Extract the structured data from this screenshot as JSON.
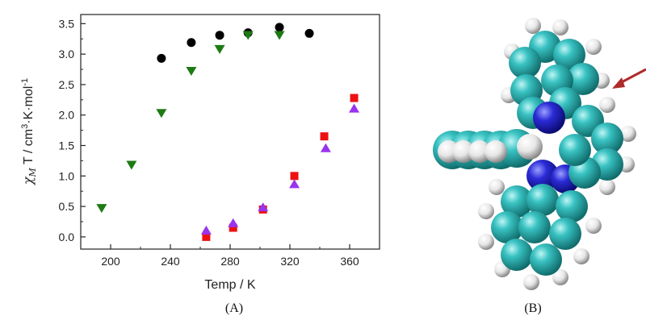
{
  "chart_data": {
    "type": "scatter",
    "xlabel": "Temp / K",
    "ylabel": {
      "symbol": "χ",
      "subscript": "M",
      "rest": " T / cm",
      "sup1": "3",
      "mid": "·K·mol",
      "sup2": "-1"
    },
    "xlim": [
      180,
      380
    ],
    "ylim": [
      -0.2,
      3.65
    ],
    "xticks": [
      200,
      240,
      280,
      320,
      360
    ],
    "yticks": [
      0.0,
      0.5,
      1.0,
      1.5,
      2.0,
      2.5,
      3.0,
      3.5
    ],
    "xtick_labels": [
      "200",
      "240",
      "280",
      "320",
      "360"
    ],
    "ytick_labels": [
      "0.0",
      "0.5",
      "1.0",
      "1.5",
      "2.0",
      "2.5",
      "3.0",
      "3.5"
    ],
    "grid": false,
    "legend": "none",
    "series": [
      {
        "marker": "circle",
        "color": "#000000",
        "points": [
          [
            234,
            2.93
          ],
          [
            254,
            3.19
          ],
          [
            273,
            3.31
          ],
          [
            292,
            3.35
          ],
          [
            313,
            3.44
          ],
          [
            333,
            3.34
          ]
        ]
      },
      {
        "marker": "triangle-down",
        "color": "#1e7a14",
        "points": [
          [
            194,
            0.48
          ],
          [
            214,
            1.19
          ],
          [
            234,
            2.04
          ],
          [
            254,
            2.73
          ],
          [
            273,
            3.09
          ],
          [
            292,
            3.32
          ],
          [
            313,
            3.32
          ]
        ]
      },
      {
        "marker": "square",
        "color": "#ee1111",
        "points": [
          [
            264,
            0.0
          ],
          [
            282,
            0.15
          ],
          [
            302,
            0.45
          ],
          [
            323,
            1.0
          ],
          [
            343,
            1.65
          ],
          [
            363,
            2.28
          ]
        ]
      },
      {
        "marker": "triangle-up",
        "color": "#9933ee",
        "points": [
          [
            264,
            0.1
          ],
          [
            282,
            0.22
          ],
          [
            302,
            0.48
          ],
          [
            323,
            0.86
          ],
          [
            344,
            1.45
          ],
          [
            363,
            2.1
          ]
        ]
      }
    ]
  },
  "panels": {
    "a_label": "(A)",
    "b_label": "(B)"
  },
  "molecule": {
    "carbon_color": "#2fb4b4",
    "nitrogen_color": "#2b2bd6",
    "hydrogen_color": "#e8e8e8",
    "arrow_color": "#b02a2a"
  }
}
